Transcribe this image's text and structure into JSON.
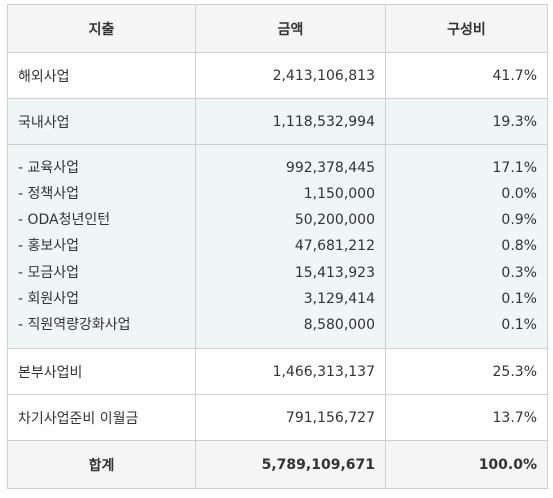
{
  "header": {
    "col1": "지출",
    "col2": "금액",
    "col3": "구성비"
  },
  "rows": [
    {
      "label": "해외사업",
      "amount": "2,413,106,813",
      "ratio": "41.7%"
    },
    {
      "label": "국내사업",
      "amount": "1,118,532,994",
      "ratio": "19.3%"
    }
  ],
  "sub_rows": [
    {
      "label": "- 교육사업",
      "amount": "992,378,445",
      "ratio": "17.1%"
    },
    {
      "label": "- 정책사업",
      "amount": "1,150,000",
      "ratio": "0.0%"
    },
    {
      "label": "- ODA청년인턴",
      "amount": "50,200,000",
      "ratio": "0.9%"
    },
    {
      "label": "- 홍보사업",
      "amount": "47,681,212",
      "ratio": "0.8%"
    },
    {
      "label": "- 모금사업",
      "amount": "15,413,923",
      "ratio": "0.3%"
    },
    {
      "label": "- 회원사업",
      "amount": "3,129,414",
      "ratio": "0.1%"
    },
    {
      "label": "- 직원역량강화사업",
      "amount": "8,580,000",
      "ratio": "0.1%"
    }
  ],
  "rows_after": [
    {
      "label": "본부사업비",
      "amount": "1,466,313,137",
      "ratio": "25.3%"
    },
    {
      "label": "차기사업준비 이월금",
      "amount": "791,156,727",
      "ratio": "13.7%"
    }
  ],
  "total": {
    "label": "합계",
    "amount": "5,789,109,671",
    "ratio": "100.0%"
  }
}
